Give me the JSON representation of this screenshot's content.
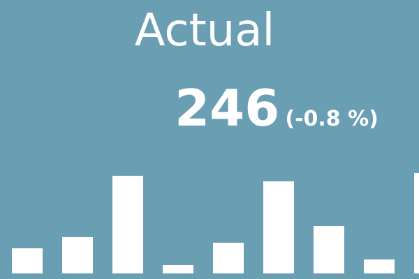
{
  "card": {
    "background": "#6a9fb3",
    "foreground": "#ffffff"
  },
  "kpi": {
    "title": "Actual",
    "value": "246",
    "change": "(-0.8 %)"
  },
  "chart_data": {
    "type": "bar",
    "values": [
      4.5,
      6.5,
      17.5,
      1.5,
      5.5,
      16.5,
      8.5,
      2.5,
      18
    ],
    "ylim": [
      0,
      20
    ],
    "title": "",
    "xlabel": "",
    "ylabel": "",
    "grid": false,
    "bar_color": "#ffffff"
  }
}
